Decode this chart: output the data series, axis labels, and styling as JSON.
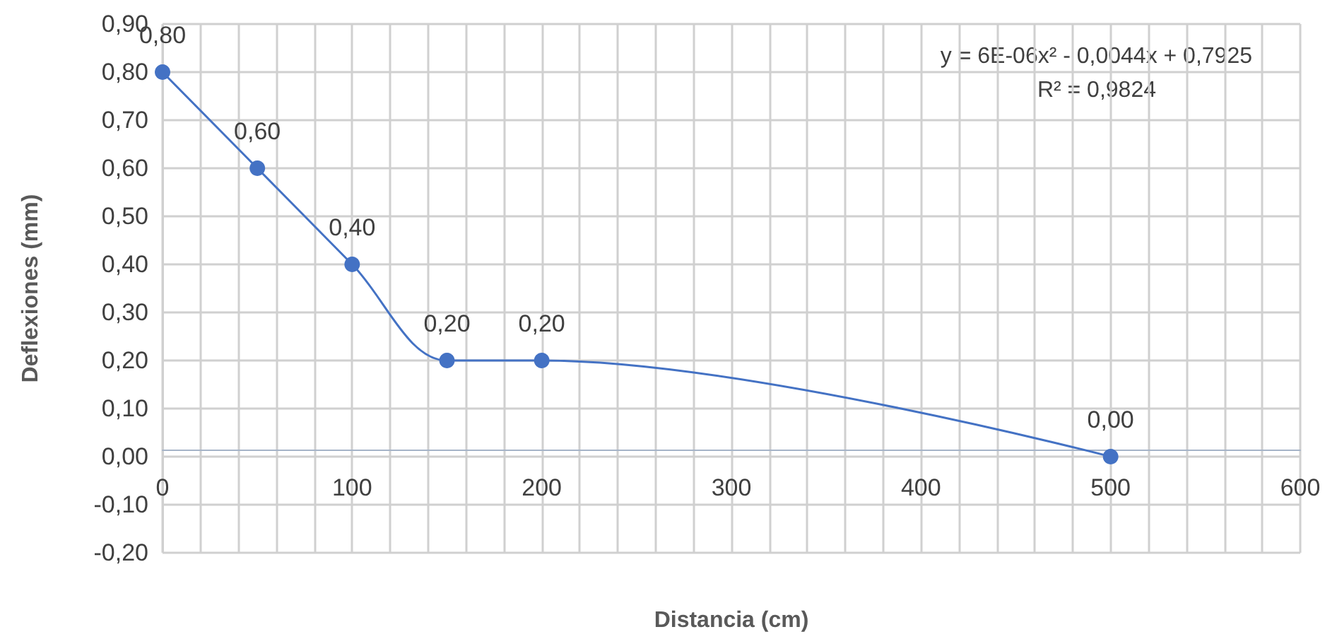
{
  "chart_data": {
    "type": "line",
    "xlabel": "Distancia (cm)",
    "ylabel": "Deflexiones (mm)",
    "x": [
      0,
      50,
      100,
      150,
      200,
      500
    ],
    "series": [
      {
        "color": "#4472c4",
        "values": [
          0.8,
          0.6,
          0.4,
          0.2,
          0.2,
          0.0
        ],
        "value_labels": [
          "0,80",
          "0,60",
          "0,40",
          "0,20",
          "0,20",
          "0,00"
        ]
      }
    ],
    "xlim": [
      0,
      600
    ],
    "xticks": [
      0,
      100,
      200,
      300,
      400,
      500,
      600
    ],
    "ylim": [
      -0.2,
      0.9
    ],
    "yticks": [
      {
        "value": -0.2,
        "label": "-0,20"
      },
      {
        "value": -0.1,
        "label": "-0,10"
      },
      {
        "value": 0,
        "label": "0,00"
      },
      {
        "value": 0.1,
        "label": "0,10"
      },
      {
        "value": 0.2,
        "label": "0,20"
      },
      {
        "value": 0.3,
        "label": "0,30"
      },
      {
        "value": 0.4,
        "label": "0,40"
      },
      {
        "value": 0.5,
        "label": "0,50"
      },
      {
        "value": 0.6,
        "label": "0,60"
      },
      {
        "value": 0.7,
        "label": "0,70"
      },
      {
        "value": 0.8,
        "label": "0,80"
      },
      {
        "value": 0.9,
        "label": "0,90"
      }
    ],
    "annotations": [
      "y = 6E-06x² - 0,0044x + 0,7925",
      "R² = 0,9824"
    ],
    "grid": true,
    "marker": "circle",
    "line_style": "solid"
  }
}
